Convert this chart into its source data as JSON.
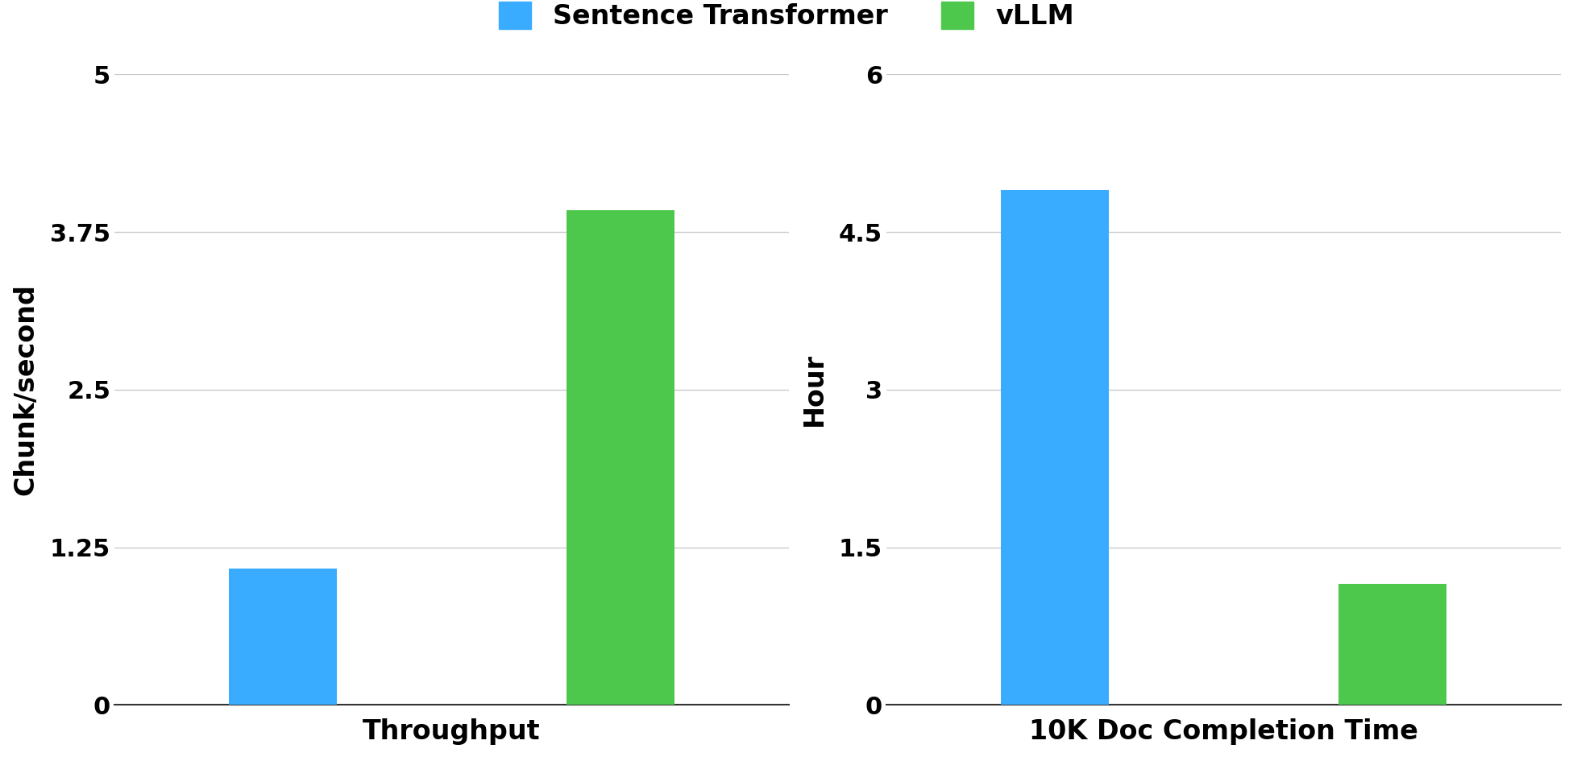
{
  "left_chart": {
    "title": "Throughput",
    "ylabel": "Chunk/second",
    "bars": [
      {
        "label": "Sentence Transformer",
        "value": 1.08,
        "color": "#3AACFF"
      },
      {
        "label": "vLLM",
        "value": 3.92,
        "color": "#4DC84D"
      }
    ],
    "ylim": [
      0,
      5
    ],
    "yticks": [
      0,
      1.25,
      2.5,
      3.75,
      5
    ]
  },
  "right_chart": {
    "title": "10K Doc Completion Time",
    "ylabel": "Hour",
    "bars": [
      {
        "label": "Sentence Transformer",
        "value": 4.9,
        "color": "#3AACFF"
      },
      {
        "label": "vLLM",
        "value": 1.15,
        "color": "#4DC84D"
      }
    ],
    "ylim": [
      0,
      6
    ],
    "yticks": [
      0,
      1.5,
      3,
      4.5,
      6
    ]
  },
  "legend": {
    "labels": [
      "Sentence Transformer",
      "vLLM"
    ],
    "colors": [
      "#3AACFF",
      "#4DC84D"
    ]
  },
  "background_color": "#ffffff",
  "bar_width": 0.32,
  "fontsize_title": 24,
  "fontsize_ylabel": 24,
  "fontsize_ticks": 22,
  "fontsize_legend": 24
}
